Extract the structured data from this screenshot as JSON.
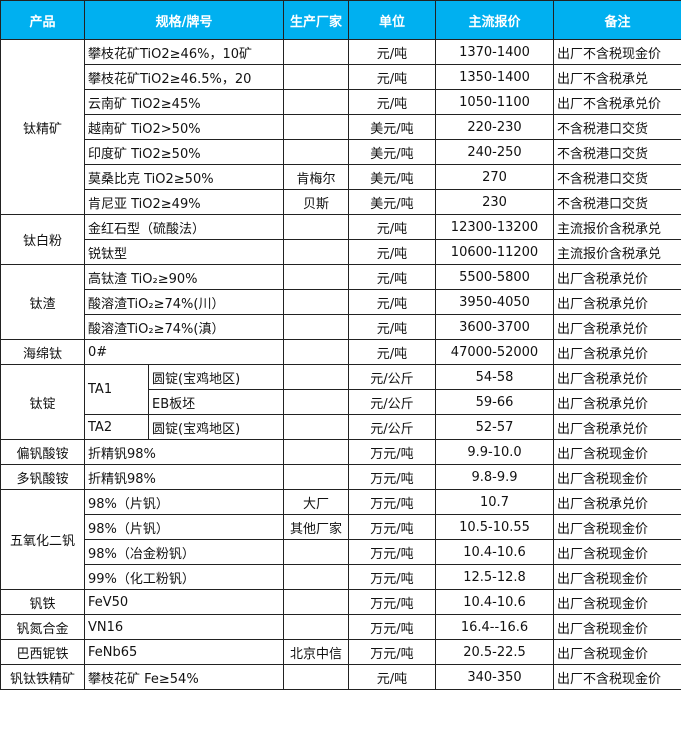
{
  "header": {
    "product": "产品",
    "spec": "规格/牌号",
    "maker": "生产厂家",
    "unit": "单位",
    "price": "主流报价",
    "note": "备注"
  },
  "header_color": "#00b0f0",
  "groups": [
    {
      "product": "钛精矿",
      "items": [
        {
          "spec": "攀枝花矿TiO2≥46%，10矿",
          "maker": "",
          "unit": "元/吨",
          "price": "1370-1400",
          "note": "出厂不含税现金价"
        },
        {
          "spec": "攀枝花矿TiO2≥46.5%，20",
          "maker": "",
          "unit": "元/吨",
          "price": "1350-1400",
          "note": "出厂不含税承兑"
        },
        {
          "spec": "云南矿 TiO2≥45%",
          "maker": "",
          "unit": "元/吨",
          "price": "1050-1100",
          "note": "出厂不含税承兑价"
        },
        {
          "spec": "越南矿 TiO2>50%",
          "maker": "",
          "unit": "美元/吨",
          "price": "220-230",
          "note": "不含税港口交货"
        },
        {
          "spec": "印度矿 TiO2≥50%",
          "maker": "",
          "unit": "美元/吨",
          "price": "240-250",
          "note": "不含税港口交货"
        },
        {
          "spec": "莫桑比克 TiO2≥50%",
          "maker": "肯梅尔",
          "unit": "美元/吨",
          "price": "270",
          "note": "不含税港口交货"
        },
        {
          "spec": "肯尼亚 TiO2≥49%",
          "maker": "贝斯",
          "unit": "美元/吨",
          "price": "230",
          "note": "不含税港口交货"
        }
      ]
    },
    {
      "product": "钛白粉",
      "items": [
        {
          "spec": "金红石型（硫酸法）",
          "maker": "",
          "unit": "元/吨",
          "price": "12300-13200",
          "note": "主流报价含税承兑"
        },
        {
          "spec": "锐钛型",
          "maker": "",
          "unit": "元/吨",
          "price": "10600-11200",
          "note": "主流报价含税承兑"
        }
      ]
    },
    {
      "product": "钛渣",
      "items": [
        {
          "spec": "高钛渣 TiO₂≥90%",
          "maker": "",
          "unit": "元/吨",
          "price": "5500-5800",
          "note": "出厂含税承兑价"
        },
        {
          "spec": "酸溶渣TiO₂≥74%(川）",
          "maker": "",
          "unit": "元/吨",
          "price": "3950-4050",
          "note": "出厂含税承兑价"
        },
        {
          "spec": "酸溶渣TiO₂≥74%(滇）",
          "maker": "",
          "unit": "元/吨",
          "price": "3600-3700",
          "note": "出厂含税承兑价"
        }
      ]
    },
    {
      "product": "海绵钛",
      "items": [
        {
          "spec": "0#",
          "maker": "",
          "unit": "元/吨",
          "price": "47000-52000",
          "note": "出厂含税承兑价"
        }
      ]
    },
    {
      "product": "钛锭",
      "items": [
        {
          "grade": "TA1",
          "sub": "圆锭(宝鸡地区)",
          "maker": "",
          "unit": "元/公斤",
          "price": "54-58",
          "note": "出厂含税承兑价"
        },
        {
          "grade": "TA1",
          "sub": "EB板坯",
          "maker": "",
          "unit": "元/公斤",
          "price": "59-66",
          "note": "出厂含税承兑价"
        },
        {
          "grade": "TA2",
          "sub": "圆锭(宝鸡地区)",
          "maker": "",
          "unit": "元/公斤",
          "price": "52-57",
          "note": "出厂含税承兑价"
        }
      ]
    },
    {
      "product": "偏钒酸铵",
      "items": [
        {
          "spec": "折精钒98%",
          "maker": "",
          "unit": "万元/吨",
          "price": "9.9-10.0",
          "note": "出厂含税现金价"
        }
      ]
    },
    {
      "product": "多钒酸铵",
      "items": [
        {
          "spec": "折精钒98%",
          "maker": "",
          "unit": "万元/吨",
          "price": "9.8-9.9",
          "note": "出厂含税现金价"
        }
      ]
    },
    {
      "product": "五氧化二钒",
      "items": [
        {
          "spec": "98%（片钒）",
          "maker": "大厂",
          "unit": "万元/吨",
          "price": "10.7",
          "note": "出厂含税承兑价"
        },
        {
          "spec": "98%（片钒）",
          "maker": "其他厂家",
          "unit": "万元/吨",
          "price": "10.5-10.55",
          "note": "出厂含税现金价"
        },
        {
          "spec": "98%（冶金粉钒）",
          "maker": "",
          "unit": "万元/吨",
          "price": "10.4-10.6",
          "note": "出厂含税现金价"
        },
        {
          "spec": "99%（化工粉钒）",
          "maker": "",
          "unit": "万元/吨",
          "price": "12.5-12.8",
          "note": "出厂含税现金价"
        }
      ]
    },
    {
      "product": "钒铁",
      "items": [
        {
          "spec": "FeV50",
          "maker": "",
          "unit": "万元/吨",
          "price": "10.4-10.6",
          "note": "出厂含税现金价"
        }
      ]
    },
    {
      "product": "钒氮合金",
      "items": [
        {
          "spec": "VN16",
          "maker": "",
          "unit": "万元/吨",
          "price": "16.4--16.6",
          "note": "出厂含税现金价"
        }
      ]
    },
    {
      "product": "巴西铌铁",
      "items": [
        {
          "spec": "FeNb65",
          "maker": "北京中信",
          "unit": "万元/吨",
          "price": "20.5-22.5",
          "note": "出厂含税现金价"
        }
      ]
    },
    {
      "product": "钒钛铁精矿",
      "items": [
        {
          "spec": "攀枝花矿 Fe≥54%",
          "maker": "",
          "unit": "元/吨",
          "price": "340-350",
          "note": "出厂不含税现金价"
        }
      ]
    }
  ]
}
